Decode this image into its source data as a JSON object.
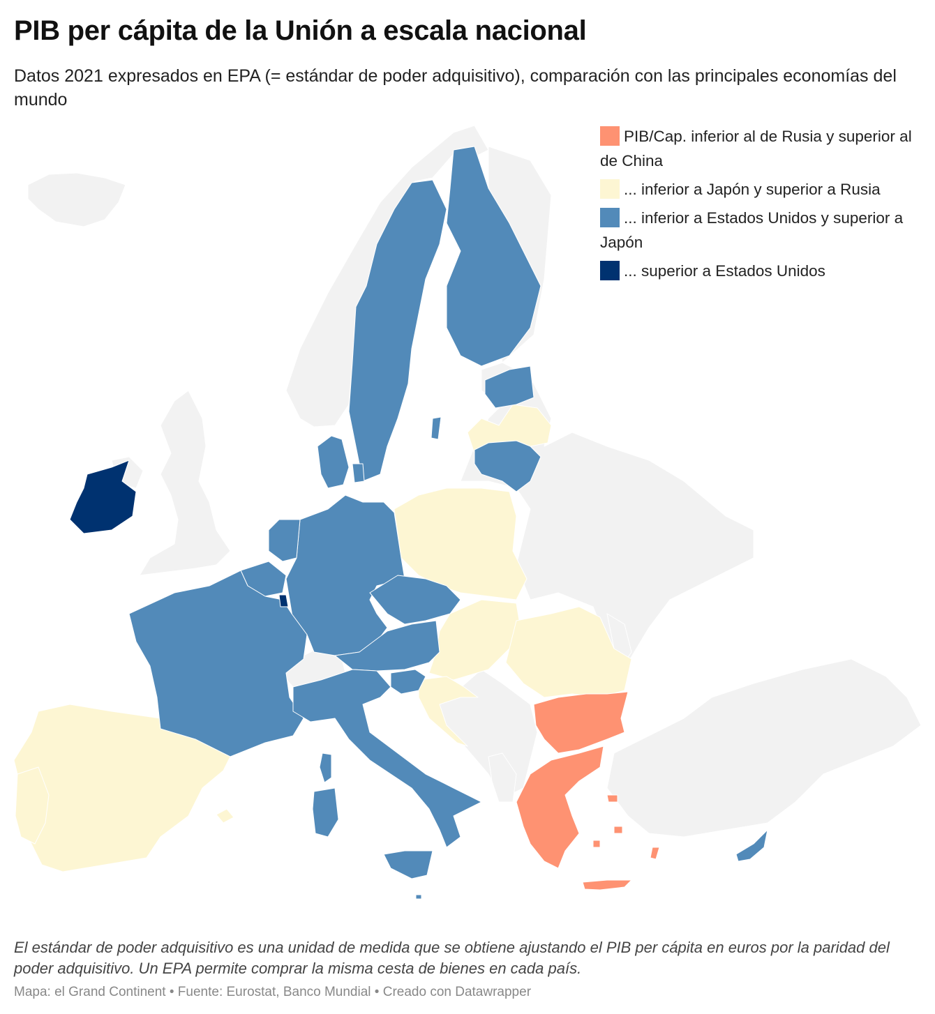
{
  "title": "PIB per cápita de la Unión a escala nacional",
  "subtitle": "Datos 2021 expresados en EPA (= estándar de poder adquisitivo), comparación con las principales economías del mundo",
  "legend": [
    {
      "label": "PIB/Cap. inferior al de Rusia y superior al de China",
      "color": "#fe9272"
    },
    {
      "label": "... inferior a Japón y superior a Rusia",
      "color": "#fdf6d3"
    },
    {
      "label": "... inferior a Estados Unidos y superior a Japón",
      "color": "#528ab9"
    },
    {
      "label": "... superior a Estados Unidos",
      "color": "#003270"
    }
  ],
  "colors": {
    "non_eu": "#f2f2f2",
    "border": "#ffffff"
  },
  "note": "El estándar de poder adquisitivo es una unidad de medida que se obtiene ajustando el PIB per cápita en euros por la paridad del poder adquisitivo. Un EPA permite comprar la misma cesta de bienes en cada país.",
  "credits": {
    "map": "Mapa: el Grand Continent",
    "sep": " • ",
    "source": "Fuente: Eurostat, Banco Mundial",
    "created": "Creado con Datawrapper"
  }
}
